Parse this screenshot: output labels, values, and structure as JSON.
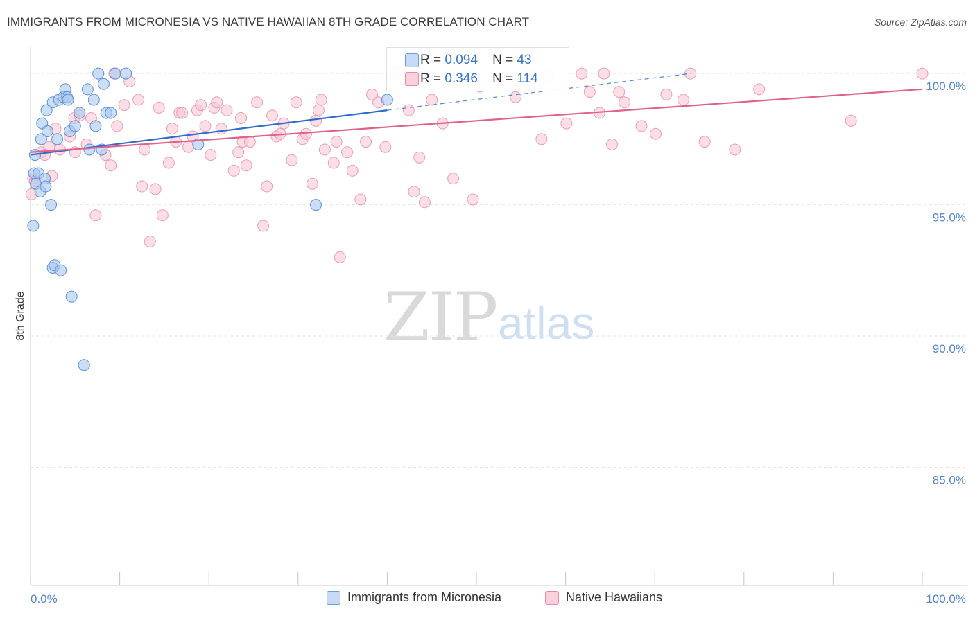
{
  "title": "IMMIGRANTS FROM MICRONESIA VS NATIVE HAWAIIAN 8TH GRADE CORRELATION CHART",
  "source": "Source: ZipAtlas.com",
  "watermark": {
    "zip": "ZIP",
    "atlas": "atlas"
  },
  "colors": {
    "blue_fill": "#aac8ef",
    "blue_stroke": "#4f86d4",
    "blue_line": "#2f6cc9",
    "pink_fill": "#f8c2d2",
    "pink_stroke": "#e58aa8",
    "pink_line": "#e0608e",
    "grid": "#e4e4e4",
    "axis_text": "#5585c8"
  },
  "stats": {
    "rows": [
      {
        "r_label": "R =",
        "r_value": "0.094",
        "n_label": "N =",
        "n_value": "43"
      },
      {
        "r_label": "R =",
        "r_value": "0.346",
        "n_label": "N =",
        "n_value": "114"
      }
    ]
  },
  "legend": {
    "series1": "Immigrants from Micronesia",
    "series2": "Native Hawaiians"
  },
  "chart_data": {
    "type": "scatter",
    "title": "IMMIGRANTS FROM MICRONESIA VS NATIVE HAWAIIAN 8TH GRADE CORRELATION CHART",
    "xlabel": "",
    "ylabel": "8th Grade",
    "xlim": [
      0,
      100
    ],
    "ylim": [
      80.5,
      100.9
    ],
    "x_tick_labels": [
      "0.0%",
      "100.0%"
    ],
    "y_ticks": [
      100,
      95,
      90,
      85
    ],
    "y_tick_labels": [
      "100.0%",
      "95.0%",
      "90.0%",
      "85.0%"
    ],
    "series": [
      {
        "name": "Immigrants from Micronesia",
        "R": 0.094,
        "N": 43,
        "trend": {
          "x0": 0.0,
          "y0": 96.9,
          "x1": 40.0,
          "y1": 98.6,
          "dash_x1": 74.0,
          "dash_y1": 100.0
        },
        "points": [
          [
            0.3,
            94.2
          ],
          [
            0.4,
            96.2
          ],
          [
            0.5,
            96.9
          ],
          [
            0.6,
            95.8
          ],
          [
            0.9,
            96.2
          ],
          [
            1.1,
            95.5
          ],
          [
            1.2,
            97.5
          ],
          [
            1.3,
            98.1
          ],
          [
            1.6,
            96.0
          ],
          [
            1.7,
            95.7
          ],
          [
            1.8,
            98.6
          ],
          [
            1.9,
            97.8
          ],
          [
            2.3,
            95.0
          ],
          [
            2.5,
            98.9
          ],
          [
            2.5,
            92.6
          ],
          [
            2.7,
            92.7
          ],
          [
            3.0,
            97.5
          ],
          [
            3.2,
            99.0
          ],
          [
            3.4,
            92.5
          ],
          [
            3.7,
            99.1
          ],
          [
            3.9,
            99.4
          ],
          [
            4.1,
            99.1
          ],
          [
            4.2,
            99.0
          ],
          [
            4.4,
            97.8
          ],
          [
            4.6,
            91.5
          ],
          [
            5.0,
            98.0
          ],
          [
            5.5,
            98.5
          ],
          [
            6.0,
            88.9
          ],
          [
            6.4,
            99.4
          ],
          [
            6.6,
            97.1
          ],
          [
            7.1,
            99.0
          ],
          [
            7.3,
            98.0
          ],
          [
            7.6,
            100.0
          ],
          [
            8.0,
            97.1
          ],
          [
            8.2,
            99.6
          ],
          [
            8.5,
            98.5
          ],
          [
            9.0,
            98.5
          ],
          [
            9.5,
            100.0
          ],
          [
            10.7,
            100.0
          ],
          [
            18.8,
            97.3
          ],
          [
            32.0,
            95.0
          ],
          [
            40.0,
            99.0
          ],
          [
            44.5,
            99.9
          ]
        ]
      },
      {
        "name": "Native Hawaiians",
        "R": 0.346,
        "N": 114,
        "trend": {
          "x0": 0.0,
          "y0": 97.0,
          "x1": 100.0,
          "y1": 99.4
        },
        "points": [
          [
            0.1,
            95.4
          ],
          [
            0.3,
            96.0
          ],
          [
            0.5,
            95.9
          ],
          [
            1.2,
            97.0
          ],
          [
            1.6,
            96.9
          ],
          [
            2.1,
            97.2
          ],
          [
            2.4,
            96.1
          ],
          [
            2.8,
            97.9
          ],
          [
            3.3,
            97.1
          ],
          [
            4.4,
            97.6
          ],
          [
            4.9,
            98.3
          ],
          [
            5.0,
            97.0
          ],
          [
            5.5,
            98.4
          ],
          [
            6.3,
            97.3
          ],
          [
            6.8,
            98.3
          ],
          [
            7.3,
            94.6
          ],
          [
            8.4,
            96.9
          ],
          [
            9.0,
            96.5
          ],
          [
            9.4,
            100.0
          ],
          [
            9.7,
            98.0
          ],
          [
            10.5,
            98.8
          ],
          [
            11.1,
            99.7
          ],
          [
            12.1,
            99.0
          ],
          [
            12.5,
            95.7
          ],
          [
            12.8,
            97.1
          ],
          [
            13.4,
            93.6
          ],
          [
            14.0,
            95.6
          ],
          [
            14.4,
            98.7
          ],
          [
            14.8,
            94.6
          ],
          [
            15.5,
            96.6
          ],
          [
            15.9,
            97.9
          ],
          [
            16.3,
            97.4
          ],
          [
            16.7,
            98.5
          ],
          [
            17.0,
            98.5
          ],
          [
            17.7,
            97.2
          ],
          [
            18.2,
            97.6
          ],
          [
            18.7,
            98.6
          ],
          [
            19.1,
            98.8
          ],
          [
            19.6,
            98.0
          ],
          [
            20.2,
            96.9
          ],
          [
            20.6,
            98.7
          ],
          [
            20.9,
            98.9
          ],
          [
            21.4,
            97.9
          ],
          [
            22.0,
            98.6
          ],
          [
            22.8,
            96.3
          ],
          [
            23.3,
            97.0
          ],
          [
            23.6,
            98.3
          ],
          [
            23.8,
            97.4
          ],
          [
            24.2,
            96.5
          ],
          [
            24.6,
            97.4
          ],
          [
            25.4,
            98.9
          ],
          [
            26.1,
            94.2
          ],
          [
            26.5,
            95.7
          ],
          [
            27.1,
            98.4
          ],
          [
            27.6,
            97.6
          ],
          [
            28.0,
            97.7
          ],
          [
            28.4,
            98.1
          ],
          [
            29.3,
            96.7
          ],
          [
            29.8,
            98.9
          ],
          [
            30.5,
            97.5
          ],
          [
            30.9,
            97.7
          ],
          [
            31.6,
            95.8
          ],
          [
            32.0,
            98.2
          ],
          [
            32.3,
            98.6
          ],
          [
            32.6,
            99.0
          ],
          [
            33.0,
            97.1
          ],
          [
            34.0,
            96.6
          ],
          [
            34.3,
            97.4
          ],
          [
            34.7,
            93.0
          ],
          [
            35.5,
            97.0
          ],
          [
            36.1,
            96.3
          ],
          [
            37.0,
            95.2
          ],
          [
            37.6,
            97.4
          ],
          [
            38.3,
            99.2
          ],
          [
            39.0,
            98.9
          ],
          [
            39.8,
            97.2
          ],
          [
            40.9,
            100.0
          ],
          [
            42.4,
            98.6
          ],
          [
            43.0,
            95.5
          ],
          [
            43.6,
            96.8
          ],
          [
            44.2,
            95.1
          ],
          [
            45.0,
            99.0
          ],
          [
            46.2,
            98.1
          ],
          [
            47.4,
            96.0
          ],
          [
            49.6,
            95.2
          ],
          [
            50.4,
            99.5
          ],
          [
            53.1,
            99.7
          ],
          [
            54.4,
            99.1
          ],
          [
            55.7,
            100.0
          ],
          [
            57.3,
            97.5
          ],
          [
            57.9,
            99.9
          ],
          [
            60.1,
            98.1
          ],
          [
            61.8,
            100.0
          ],
          [
            62.7,
            99.3
          ],
          [
            63.8,
            98.5
          ],
          [
            64.3,
            100.0
          ],
          [
            65.2,
            97.3
          ],
          [
            66.0,
            99.3
          ],
          [
            66.6,
            98.9
          ],
          [
            68.5,
            98.0
          ],
          [
            70.1,
            97.7
          ],
          [
            71.3,
            99.2
          ],
          [
            73.2,
            99.0
          ],
          [
            74.0,
            100.0
          ],
          [
            75.6,
            97.4
          ],
          [
            79.0,
            97.1
          ],
          [
            81.7,
            99.4
          ],
          [
            92.0,
            98.2
          ],
          [
            100.0,
            100.0
          ]
        ]
      }
    ]
  }
}
